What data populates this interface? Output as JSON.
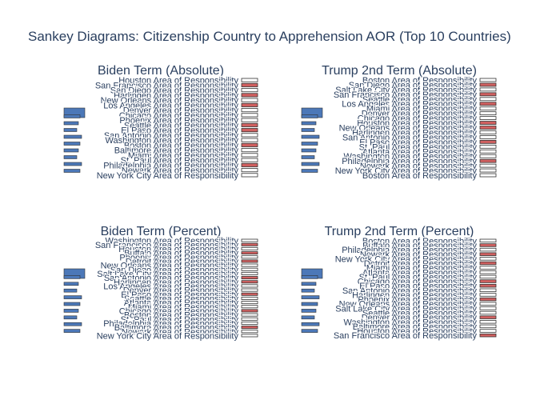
{
  "chart_data": {
    "type": "sankey",
    "title": "Sankey Diagrams: Citizenship Country to Apprehension AOR (Top 10 Countries)",
    "colors": {
      "source_node": "#4c78b8",
      "aor_node": "#d06060",
      "node_outline": "#333333",
      "title": "#2a3f5f"
    },
    "panels": [
      {
        "title": "Biden Term (Absolute)",
        "aor_labels": [
          "Houston Area of Responsibility",
          "San Francisco Area of Responsibility",
          "San Diego Area of Responsibility",
          "Harlingen Area of Responsibility",
          "New Orleans Area of Responsibility",
          "Los Angeles Area of Responsibility",
          "Denver Area of Responsibility",
          "Chicago Area of Responsibility",
          "Phoenix Area of Responsibility",
          "Seattle Area of Responsibility",
          "El Paso Area of Responsibility",
          "San Antonio Area of Responsibility",
          "Washington Area of Responsibility",
          "Boston Area of Responsibility",
          "Baltimore Area of Responsibility",
          "Miami Area of Responsibility",
          "St. Paul Area of Responsibility",
          "Philadelphia Area of Responsibility",
          "Newark Area of Responsibility",
          "New York City Area of Responsibility"
        ]
      },
      {
        "title": "Trump 2nd Term (Absolute)",
        "aor_labels": [
          "Boston Area of Responsibility",
          "San Diego Area of Responsibility",
          "Salt Lake City Area of Responsibility",
          "San Francisco Area of Responsibility",
          "Seattle Area of Responsibility",
          "Los Angeles Area of Responsibility",
          "Miami Area of Responsibility",
          "Denver Area of Responsibility",
          "Chicago Area of Responsibility",
          "Houston Area of Responsibility",
          "New Orleans Area of Responsibility",
          "Harlingen Area of Responsibility",
          "San Antonio Area of Responsibility",
          "El Paso Area of Responsibility",
          "St. Paul Area of Responsibility",
          "Atlanta Area of Responsibility",
          "Washington Area of Responsibility",
          "Philadelphia Area of Responsibility",
          "Newark Area of Responsibility",
          "New York City Area of Responsibility",
          "Boston Area of Responsibility"
        ]
      },
      {
        "title": "Biden Term (Percent)",
        "aor_labels": [
          "Washington Area of Responsibility",
          "San Francisco Area of Responsibility",
          "Houston Area of Responsibility",
          "Buffalo Area of Responsibility",
          "Phoenix Area of Responsibility",
          "Detroit Area of Responsibility",
          "New Orleans Area of Responsibility",
          "San Diego Area of Responsibility",
          "Salt Lake City Area of Responsibility",
          "San Antonio Area of Responsibility",
          "Harlingen Area of Responsibility",
          "Los Angeles Area of Responsibility",
          "Denver Area of Responsibility",
          "El Paso Area of Responsibility",
          "Seattle Area of Responsibility",
          "Atlanta Area of Responsibility",
          "Miami Area of Responsibility",
          "Chicago Area of Responsibility",
          "Boston Area of Responsibility",
          "St. Paul Area of Responsibility",
          "Philadelphia Area of Responsibility",
          "Baltimore Area of Responsibility",
          "Newark Area of Responsibility",
          "New York City Area of Responsibility"
        ]
      },
      {
        "title": "Trump 2nd Term (Percent)",
        "aor_labels": [
          "Boston Area of Responsibility",
          "Buffalo Area of Responsibility",
          "Philadelphia Area of Responsibility",
          "Newark Area of Responsibility",
          "New York City Area of Responsibility",
          "Detroit Area of Responsibility",
          "Miami Area of Responsibility",
          "Atlanta Area of Responsibility",
          "St. Paul Area of Responsibility",
          "Chicago Area of Responsibility",
          "El Paso Area of Responsibility",
          "San Antonio Area of Responsibility",
          "Harlingen Area of Responsibility",
          "Phoenix Area of Responsibility",
          "New Orleans Area of Responsibility",
          "Salt Lake City Area of Responsibility",
          "Seattle Area of Responsibility",
          "Denver Area of Responsibility",
          "Washington Area of Responsibility",
          "Baltimore Area of Responsibility",
          "Houston Area of Responsibility",
          "San Francisco Area of Responsibility"
        ]
      }
    ]
  }
}
